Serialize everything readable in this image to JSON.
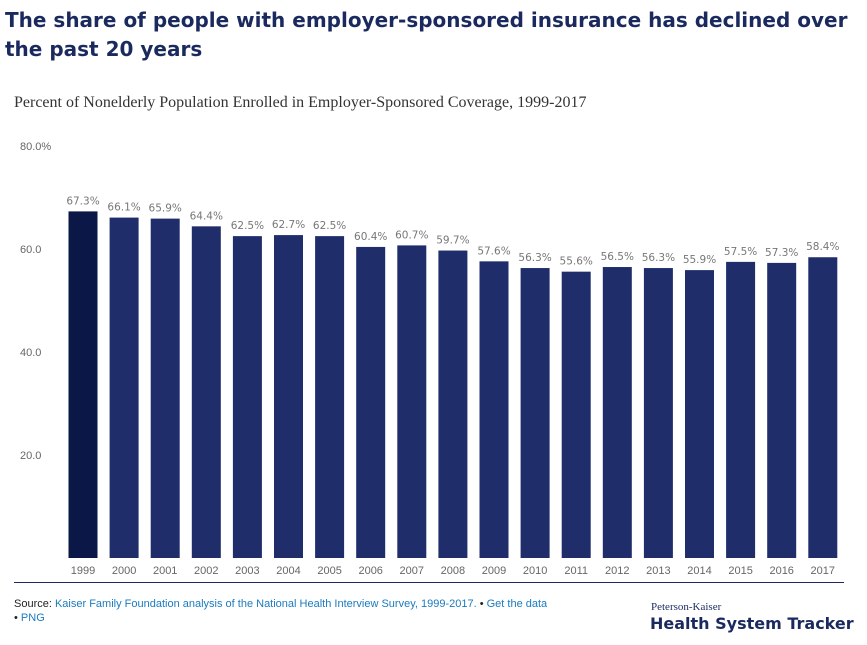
{
  "headline": "The share of people with employer-sponsored insurance has declined over the past 20 years",
  "chart_data": {
    "type": "bar",
    "title": "Percent of Nonelderly Population Enrolled in Employer-Sponsored Coverage, 1999-2017",
    "categories": [
      "1999",
      "2000",
      "2001",
      "2002",
      "2003",
      "2004",
      "2005",
      "2006",
      "2007",
      "2008",
      "2009",
      "2010",
      "2011",
      "2012",
      "2013",
      "2014",
      "2015",
      "2016",
      "2017"
    ],
    "values": [
      67.3,
      66.1,
      65.9,
      64.4,
      62.5,
      62.7,
      62.5,
      60.4,
      60.7,
      59.7,
      57.6,
      56.3,
      55.6,
      56.5,
      56.3,
      55.9,
      57.5,
      57.3,
      58.4
    ],
    "value_labels": [
      "67.3%",
      "66.1%",
      "65.9%",
      "64.4%",
      "62.5%",
      "62.7%",
      "62.5%",
      "60.4%",
      "60.7%",
      "59.7%",
      "57.6%",
      "56.3%",
      "55.6%",
      "56.5%",
      "56.3%",
      "55.9%",
      "57.5%",
      "57.3%",
      "58.4%"
    ],
    "ylim": [
      0,
      80
    ],
    "yticks": [
      20,
      40,
      60,
      80
    ],
    "ytick_labels": [
      "20.0",
      "40.0",
      "60.0",
      "80.0%"
    ],
    "grid": false,
    "colors": {
      "highlight": "#0b1746",
      "bar": "#1f2d6b",
      "label": "#777777",
      "axis_text": "#666666"
    }
  },
  "source": {
    "prefix": "Source: ",
    "link_text": "Kaiser Family Foundation analysis of the National Health Interview Survey, 1999-2017.",
    "sep1": " • ",
    "get_data": "Get the data",
    "sep2": "• ",
    "png": "PNG"
  },
  "brand": {
    "top": "Peterson-Kaiser",
    "main": "Health System Tracker"
  }
}
